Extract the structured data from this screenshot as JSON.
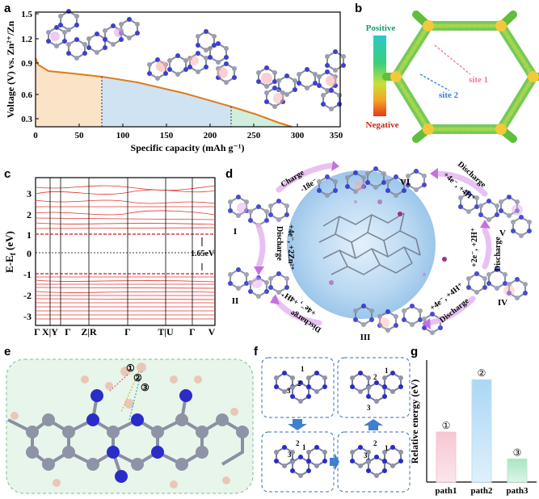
{
  "panel_labels": [
    "a",
    "b",
    "c",
    "d",
    "e",
    "f",
    "g"
  ],
  "colors": {
    "curve": "#e07b1a",
    "fill_region1": "#fbe3c8",
    "fill_region2": "#cfe3f3",
    "fill_region3": "#cfeedd",
    "band": "#e0342e",
    "bar_path1": "#f4c6d2",
    "bar_path2": "#bfe0f5",
    "bar_path3": "#b9e8cf",
    "atom_N": "#2a2cc8",
    "atom_C": "#8f93a6",
    "atom_H": "#e9c7b7",
    "panel_e_bg": "#e8f5ea",
    "blob": "#b9d9f2"
  },
  "panel_a": {
    "ylabel": "Voltage (V) vs. Zn²⁺/Zn",
    "xlabel": "Specific capacity (mAh g⁻¹)",
    "xticks": [
      "0",
      "50",
      "100",
      "150",
      "200",
      "250",
      "300",
      "350"
    ],
    "yticks": [
      "0.3",
      "0.6",
      "0.9",
      "1.2",
      "1.5"
    ]
  },
  "panel_b": {
    "colorbar_top": "Positive",
    "colorbar_bottom": "Negative",
    "site1": "site 1",
    "site2": "site 2"
  },
  "panel_c": {
    "ylabel": "E-E",
    "ylabel_sub": "f",
    "ylabel_unit": " (eV)",
    "yticks": [
      "3",
      "2",
      "1",
      "0",
      "-1",
      "-2",
      "-3"
    ],
    "kpoints": [
      "Γ",
      "X|Y",
      "Γ",
      "Z|R",
      "Γ",
      "T|U",
      "Γ",
      "V"
    ],
    "gap_label": "1.65eV"
  },
  "panel_d": {
    "states": [
      "I",
      "II",
      "III",
      "IV",
      "V",
      "VI"
    ],
    "arrows": {
      "charge": "Charge",
      "charge_e": "-18e⁻",
      "d1": "Discharge",
      "d1_ions": "+4e⁻, +2Zn²⁺",
      "d2": "Discharge",
      "d2_ions": "+4e⁻, +4H⁺",
      "d3": "Discharge",
      "d3_ions": "+4e⁻, +4H⁺",
      "d4": "Discharge",
      "d4_ions": "+2e⁻, +2H⁺",
      "d5": "Discharge",
      "d5_ions": "+4e⁻, +4H⁺"
    }
  },
  "panel_e": {
    "paths": [
      "①",
      "②",
      "③"
    ]
  },
  "panel_f": {
    "site_nums": [
      "1",
      "2",
      "3"
    ]
  },
  "chart_data": {
    "type": "bar",
    "title": "",
    "categories": [
      "path1",
      "path2",
      "path3"
    ],
    "values": [
      -1.18,
      -0.32,
      -1.62
    ],
    "value_markers": [
      "①",
      "②",
      "③"
    ],
    "xlabel": "",
    "ylabel": "Relative energy (eV)",
    "ylim": [
      -2.0,
      0
    ]
  }
}
